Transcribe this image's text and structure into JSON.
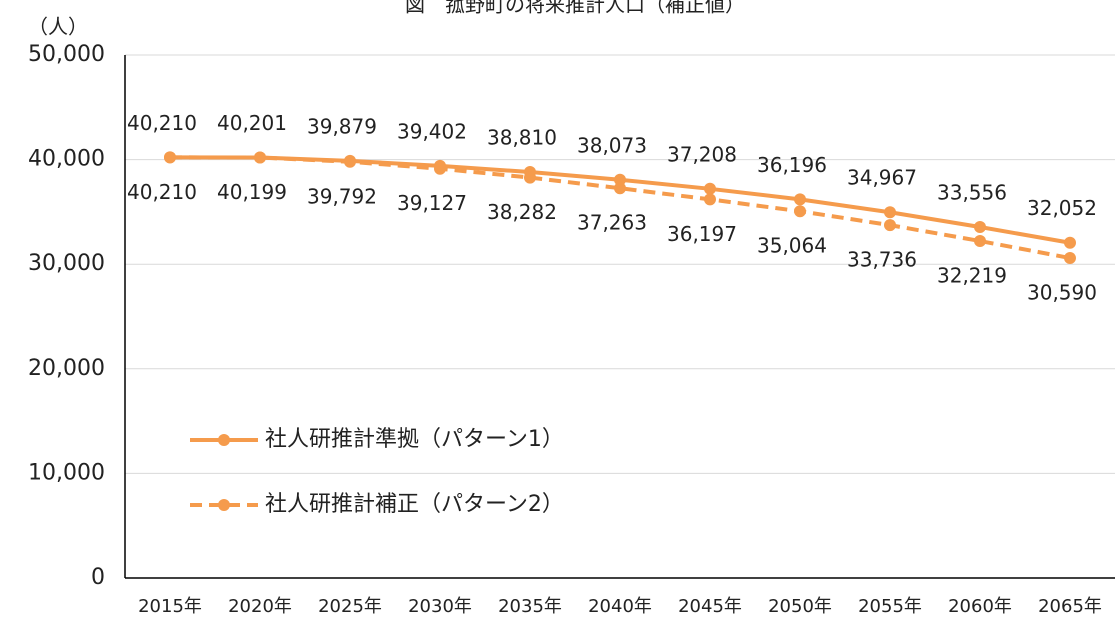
{
  "chart_data": {
    "type": "line",
    "title": "図　菰野町の将来推計人口（補正値）",
    "y_label": "（人）",
    "categories": [
      "2015年",
      "2020年",
      "2025年",
      "2030年",
      "2035年",
      "2040年",
      "2045年",
      "2050年",
      "2055年",
      "2060年",
      "2065年"
    ],
    "series": [
      {
        "name": "社人研推計準拠（パターン1）",
        "color": "#f59b4c",
        "line_style": "solid",
        "label_position": "above",
        "values": [
          40210,
          40201,
          39879,
          39402,
          38810,
          38073,
          37208,
          36196,
          34967,
          33556,
          32052
        ],
        "value_labels": [
          "40,210",
          "40,201",
          "39,879",
          "39,402",
          "38,810",
          "38,073",
          "37,208",
          "36,196",
          "34,967",
          "33,556",
          "32,052"
        ]
      },
      {
        "name": "社人研推計補正（パターン2）",
        "color": "#f59b4c",
        "line_style": "dashed",
        "label_position": "below",
        "values": [
          40210,
          40199,
          39792,
          39127,
          38282,
          37263,
          36197,
          35064,
          33736,
          32219,
          30590
        ],
        "value_labels": [
          "40,210",
          "40,199",
          "39,792",
          "39,127",
          "38,282",
          "37,263",
          "36,197",
          "35,064",
          "33,736",
          "32,219",
          "30,590"
        ]
      }
    ],
    "ylim": [
      0,
      50000
    ],
    "yticks": [
      0,
      {
        "value": 10000,
        "label": "10,000"
      },
      {
        "value": 20000,
        "label": "20,000"
      },
      {
        "value": 30000,
        "label": "30,000"
      },
      {
        "value": 40000,
        "label": "40,000"
      },
      {
        "value": 50000,
        "label": "50,000"
      }
    ],
    "grid": true
  }
}
